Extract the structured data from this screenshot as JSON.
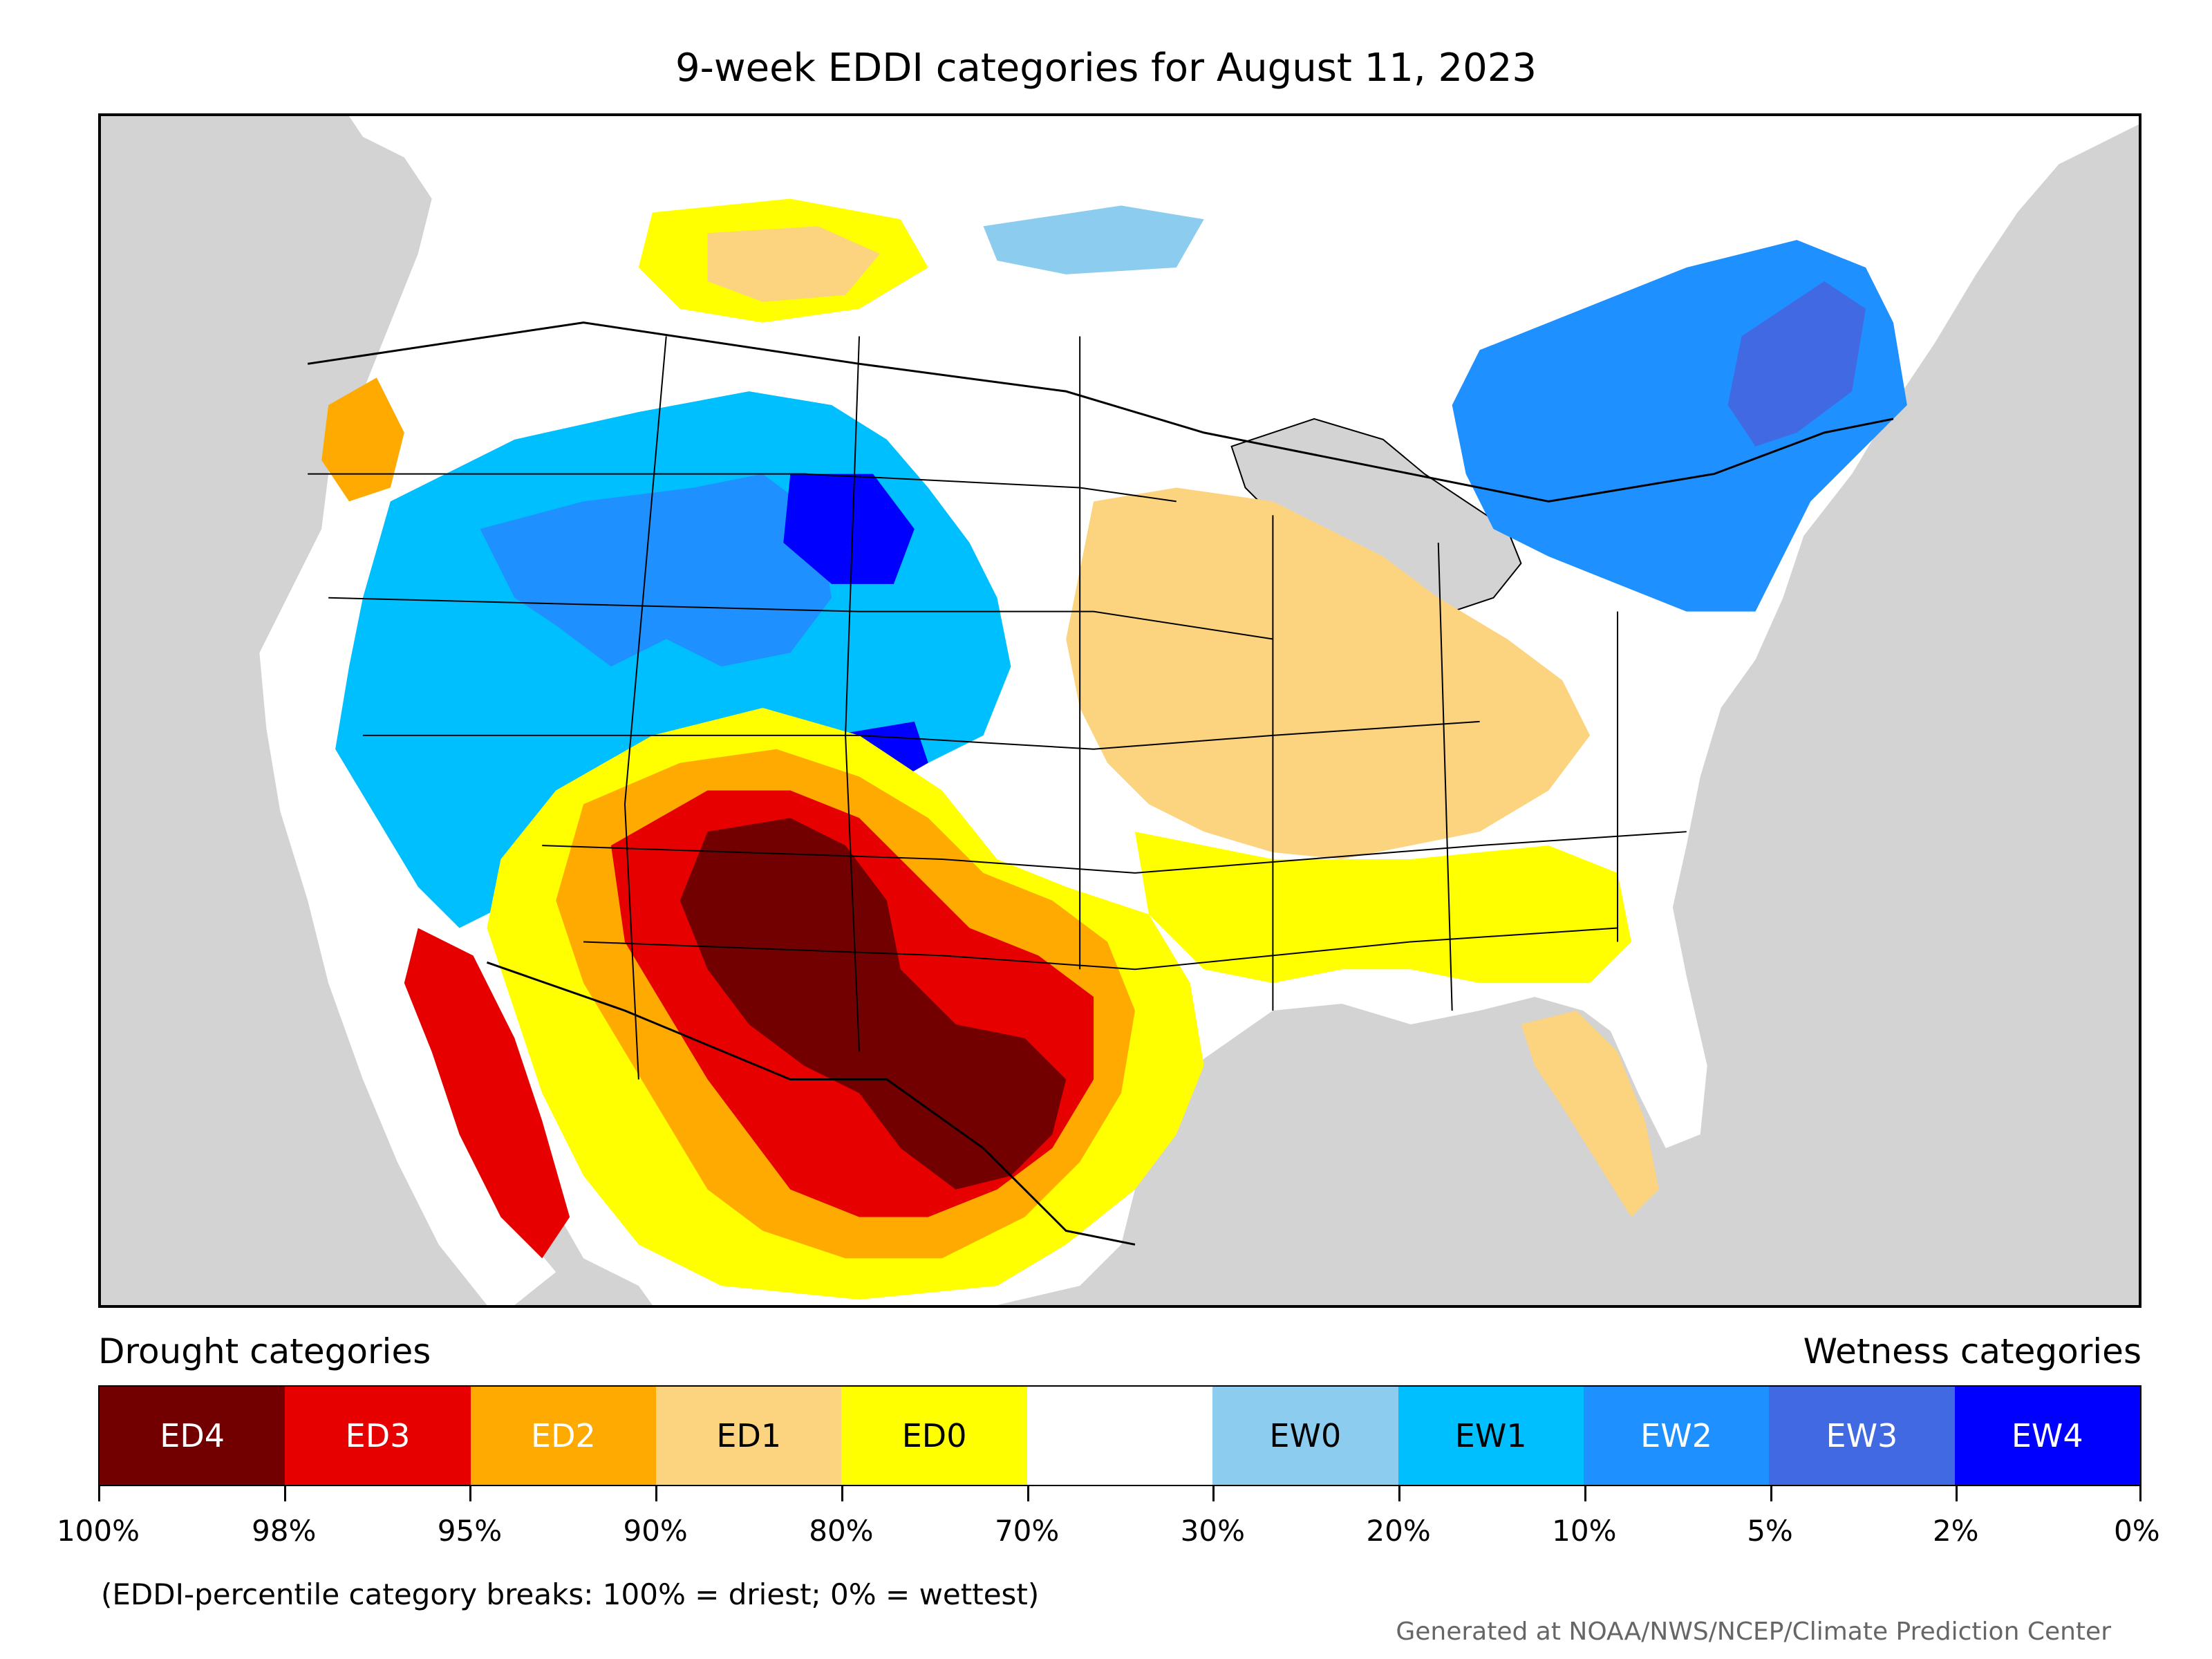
{
  "title": "9-week EDDI categories for August 11, 2023",
  "legend": {
    "drought_heading": "Drought categories",
    "wetness_heading": "Wetness categories",
    "categories": [
      {
        "label": "ED4",
        "color": "#730000",
        "text_color": "#ffffff"
      },
      {
        "label": "ED3",
        "color": "#e60000",
        "text_color": "#ffffff"
      },
      {
        "label": "ED2",
        "color": "#ffaa00",
        "text_color": "#ffffff"
      },
      {
        "label": "ED1",
        "color": "#fcd37f",
        "text_color": "#000000"
      },
      {
        "label": "ED0",
        "color": "#ffff00",
        "text_color": "#000000"
      },
      {
        "label": "",
        "color": "#ffffff",
        "text_color": "#000000"
      },
      {
        "label": "EW0",
        "color": "#8ccdef",
        "text_color": "#000000"
      },
      {
        "label": "EW1",
        "color": "#00bfff",
        "text_color": "#000000"
      },
      {
        "label": "EW2",
        "color": "#1e90ff",
        "text_color": "#ffffff"
      },
      {
        "label": "EW3",
        "color": "#4169e1",
        "text_color": "#ffffff"
      },
      {
        "label": "EW4",
        "color": "#0000ff",
        "text_color": "#ffffff"
      }
    ],
    "ticks": [
      "100%",
      "98%",
      "95%",
      "90%",
      "80%",
      "70%",
      "30%",
      "20%",
      "10%",
      "5%",
      "2%",
      "0%"
    ]
  },
  "note": "(EDDI-percentile category breaks: 100% = driest; 0% = wettest)",
  "credit": "Generated at NOAA/NWS/NCEP/Climate Prediction Center",
  "map_colors": {
    "background": "#d3d3d3",
    "land": "#ffffff",
    "borders": "#000000"
  }
}
